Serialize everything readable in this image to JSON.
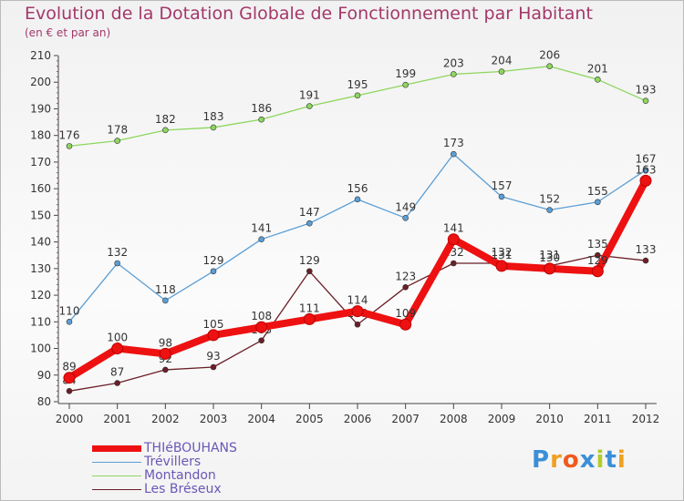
{
  "chart_data": {
    "type": "line",
    "title": "Evolution de la Dotation Globale de Fonctionnement par Habitant",
    "subtitle": "(en € et par an)",
    "xlabel": "",
    "ylabel": "",
    "ylim": [
      80,
      210
    ],
    "yticks": [
      "80",
      "90",
      "100",
      "110",
      "120",
      "130",
      "140",
      "150",
      "160",
      "170",
      "180",
      "190",
      "200",
      "210"
    ],
    "categories": [
      "2000",
      "2001",
      "2002",
      "2003",
      "2004",
      "2005",
      "2006",
      "2007",
      "2008",
      "2009",
      "2010",
      "2011",
      "2012"
    ],
    "series": [
      {
        "name": "Montandon",
        "color": "#8ed65e",
        "values": [
          176,
          178,
          182,
          183,
          186,
          191,
          195,
          199,
          203,
          204,
          206,
          201,
          193
        ]
      },
      {
        "name": "Trévillers",
        "color": "#5b9fd6",
        "values": [
          110,
          132,
          118,
          129,
          141,
          147,
          156,
          149,
          173,
          157,
          152,
          155,
          167
        ]
      },
      {
        "name": "Les Bréseux",
        "color": "#6b1e27",
        "values": [
          84,
          87,
          92,
          93,
          103,
          129,
          109,
          123,
          132,
          132,
          131,
          135,
          133
        ]
      },
      {
        "name": "THIéBOUHANS",
        "color": "#ee1111",
        "values": [
          89,
          100,
          98,
          105,
          108,
          111,
          114,
          109,
          141,
          131,
          130,
          129,
          163
        ]
      }
    ],
    "legend": [
      "THIéBOUHANS",
      "Trévillers",
      "Montandon",
      "Les Bréseux"
    ]
  },
  "logo": {
    "text": "Proxiti",
    "letter_colors": [
      "#3b8fd8",
      "#f0a020",
      "#f05a1e",
      "#3b8fd8",
      "#b2cd2a",
      "#3b8fd8",
      "#f0a020"
    ]
  }
}
